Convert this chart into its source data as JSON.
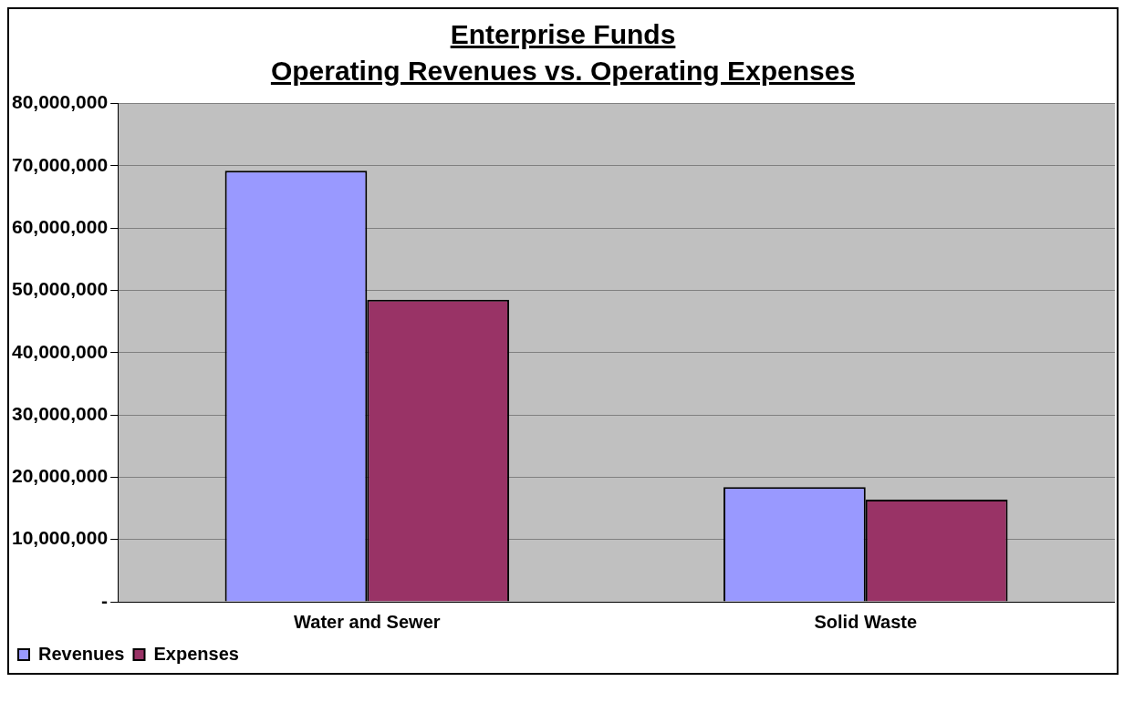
{
  "chart_data": {
    "type": "bar",
    "title": "Enterprise Funds\nOperating Revenues vs. Operating Expenses",
    "categories": [
      "Water and Sewer",
      "Solid Waste"
    ],
    "series": [
      {
        "name": "Revenues",
        "color": "#9999ff",
        "values": [
          69200000,
          18400000
        ]
      },
      {
        "name": "Expenses",
        "color": "#993366",
        "values": [
          48500000,
          16400000
        ]
      }
    ],
    "ylim": [
      0,
      80000000
    ],
    "yticks": [
      {
        "value": 0,
        "label": "-"
      },
      {
        "value": 10000000,
        "label": "10,000,000"
      },
      {
        "value": 20000000,
        "label": "20,000,000"
      },
      {
        "value": 30000000,
        "label": "30,000,000"
      },
      {
        "value": 40000000,
        "label": "40,000,000"
      },
      {
        "value": 50000000,
        "label": "50,000,000"
      },
      {
        "value": 60000000,
        "label": "60,000,000"
      },
      {
        "value": 70000000,
        "label": "70,000,000"
      },
      {
        "value": 80000000,
        "label": "80,000,000"
      }
    ],
    "grid": "y",
    "legend": "bottom left"
  }
}
